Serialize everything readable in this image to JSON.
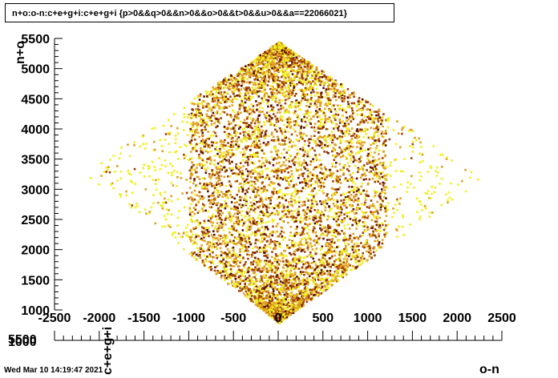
{
  "chart_data": {
    "type": "heatmap",
    "title": "n+o:o-n:c+e+g+i:c+e+g+i {p>0&&q>0&&n>0&&o>0&&t>0&&u>0&&a==22066021}",
    "xlabel": "o-n",
    "ylabel": "n+o",
    "zlabel": "c+e+g+i",
    "xlim": [
      -2500,
      2500
    ],
    "ylim": [
      1000,
      5500
    ],
    "x_ticks": [
      -2500,
      -2000,
      -1500,
      -1000,
      -500,
      0,
      500,
      1000,
      1500,
      2000,
      2500
    ],
    "y_ticks": [
      1000,
      1500,
      2000,
      2500,
      3000,
      3500,
      4000,
      4500,
      5000,
      5500
    ],
    "x_tick_labels": [
      "-2500",
      "-2000",
      "-1500",
      "-1000",
      "-500",
      "0",
      "500",
      "1000",
      "1500",
      "2000",
      "2500"
    ],
    "y_tick_labels": [
      "1000",
      "1500",
      "2000",
      "2500",
      "3000",
      "3500",
      "4000",
      "4500",
      "5000",
      "5500"
    ],
    "bottom_axis_labels": [
      "5500",
      "1000",
      "c+e+g+i"
    ],
    "region": {
      "top_vertex": [
        0,
        5450
      ],
      "left_vertex": [
        -2200,
        3300
      ],
      "right_vertex": [
        2300,
        3200
      ],
      "bottom_vertex": [
        0,
        800
      ]
    },
    "dense_band_x": [
      -1000,
      1200
    ],
    "colors": {
      "low": "#f0f020",
      "mid": "#e0a020",
      "high": "#a04000",
      "peak": "#5a1000"
    },
    "grid": false,
    "legend": "none"
  },
  "footer": {
    "timestamp": "Wed Mar 10 14:19:47 2021"
  }
}
